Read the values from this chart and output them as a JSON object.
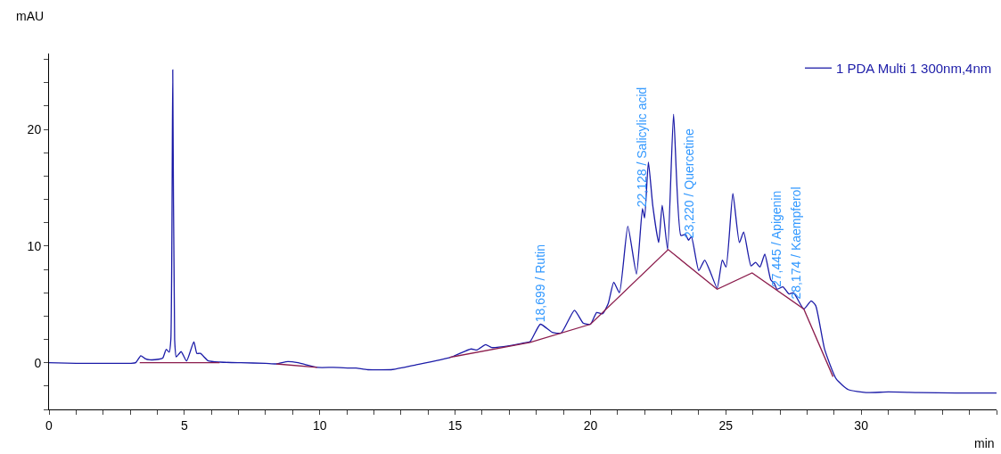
{
  "chart_data": {
    "type": "line",
    "xlabel": "min",
    "ylabel": "mAU",
    "xlim": [
      0,
      35
    ],
    "ylim": [
      -4,
      26.5
    ],
    "xticks": [
      0,
      {
        "value": 1,
        "label": null
      },
      {
        "value": 2,
        "label": null
      },
      {
        "value": 3,
        "label": null
      },
      {
        "value": 4,
        "label": null
      },
      5,
      {
        "value": 6,
        "label": null
      },
      {
        "value": 7,
        "label": null
      },
      {
        "value": 8,
        "label": null
      },
      {
        "value": 9,
        "label": null
      },
      10,
      {
        "value": 11,
        "label": null
      },
      {
        "value": 12,
        "label": null
      },
      {
        "value": 13,
        "label": null
      },
      {
        "value": 14,
        "label": null
      },
      15,
      {
        "value": 16,
        "label": null
      },
      {
        "value": 17,
        "label": null
      },
      {
        "value": 18,
        "label": null
      },
      {
        "value": 19,
        "label": null
      },
      20,
      {
        "value": 21,
        "label": null
      },
      {
        "value": 22,
        "label": null
      },
      {
        "value": 23,
        "label": null
      },
      {
        "value": 24,
        "label": null
      },
      25,
      {
        "value": 26,
        "label": null
      },
      {
        "value": 27,
        "label": null
      },
      {
        "value": 28,
        "label": null
      },
      {
        "value": 29,
        "label": null
      },
      30,
      {
        "value": 31,
        "label": null
      },
      {
        "value": 32,
        "label": null
      },
      {
        "value": 33,
        "label": null
      },
      {
        "value": 34,
        "label": null
      },
      {
        "value": 35,
        "label": null
      }
    ],
    "yticks": [
      {
        "value": -4,
        "label": null
      },
      {
        "value": -2,
        "label": null
      },
      0,
      {
        "value": 2,
        "label": null
      },
      {
        "value": 4,
        "label": null
      },
      {
        "value": 6,
        "label": null
      },
      {
        "value": 8,
        "label": null
      },
      10,
      {
        "value": 12,
        "label": null
      },
      {
        "value": 14,
        "label": null
      },
      {
        "value": 16,
        "label": null
      },
      {
        "value": 18,
        "label": null
      },
      20,
      {
        "value": 22,
        "label": null
      },
      {
        "value": 24,
        "label": null
      },
      {
        "value": 26,
        "label": null
      }
    ],
    "legend": "top right",
    "marker": "none",
    "line_style": "solid",
    "series": [
      {
        "name": "1 PDA Multi 1 300nm,4nm",
        "color": "#1c1ca8",
        "x": [
          0,
          1,
          2,
          3,
          3.2,
          3.39,
          3.55,
          3.72,
          4.05,
          4.2,
          4.33,
          4.44,
          4.5,
          4.57,
          4.64,
          4.7,
          4.88,
          5.08,
          5.35,
          5.46,
          5.59,
          5.89,
          6.33,
          7.09,
          8.0,
          8.4,
          8.82,
          9.2,
          9.92,
          10.5,
          11.1,
          11.34,
          11.78,
          12.7,
          13.52,
          14.83,
          15.59,
          15.81,
          16.13,
          16.35,
          17.0,
          17.55,
          17.77,
          18.15,
          18.59,
          18.92,
          19.41,
          19.73,
          20.0,
          20.23,
          20.45,
          20.66,
          20.86,
          21.07,
          21.38,
          21.7,
          21.92,
          22.0,
          22.14,
          22.3,
          22.52,
          22.65,
          22.85,
          23.07,
          23.34,
          23.51,
          23.62,
          23.73,
          24.0,
          24.22,
          24.44,
          24.68,
          24.87,
          25.01,
          25.26,
          25.5,
          25.66,
          25.93,
          26.1,
          26.26,
          26.44,
          26.66,
          26.79,
          26.89,
          27.11,
          27.33,
          27.5,
          27.88,
          28.15,
          28.32,
          28.65,
          29.08,
          29.52,
          30.18,
          31.0,
          32.13,
          33.5,
          35.0
        ],
        "values": [
          0,
          -0.05,
          -0.05,
          -0.05,
          0.0,
          0.6,
          0.35,
          0.25,
          0.3,
          0.4,
          1.15,
          0.9,
          2.0,
          25.1,
          2.0,
          0.5,
          0.95,
          0.15,
          1.8,
          0.8,
          0.8,
          0.15,
          0.05,
          0,
          -0.05,
          -0.1,
          0.1,
          0,
          -0.4,
          -0.4,
          -0.45,
          -0.46,
          -0.6,
          -0.58,
          -0.2,
          0.46,
          1.18,
          1.1,
          1.55,
          1.3,
          1.45,
          1.7,
          1.8,
          3.3,
          2.6,
          2.55,
          4.5,
          3.4,
          3.3,
          4.3,
          4.2,
          5.1,
          6.9,
          6.0,
          11.7,
          7.6,
          13.2,
          12.4,
          17.2,
          13.5,
          10.3,
          13.5,
          9.7,
          21.3,
          10.9,
          11.0,
          10.5,
          10.8,
          7.9,
          8.8,
          7.7,
          6.4,
          8.8,
          8.2,
          14.5,
          10.3,
          11.2,
          8.3,
          8.6,
          8.2,
          9.3,
          7.1,
          6.8,
          6.3,
          6.5,
          5.9,
          6.0,
          4.6,
          5.3,
          4.9,
          1.15,
          -1.4,
          -2.3,
          -2.56,
          -2.5,
          -2.56,
          -2.6,
          -2.6
        ]
      },
      {
        "color": "#8b1c4c",
        "x": [
          3.35,
          6.3,
          null,
          8.4,
          9.9,
          null,
          14.8,
          17.77,
          20.0,
          22.87,
          24.68,
          25.97,
          27.88,
          28.96
        ],
        "values": [
          0,
          0,
          null,
          -0.1,
          -0.4,
          null,
          0.46,
          1.75,
          3.3,
          9.7,
          6.3,
          7.7,
          4.6,
          -1.2
        ]
      }
    ],
    "annotations": [
      {
        "text": "18,699 / Rutin",
        "x": 18.15,
        "y": 3.3
      },
      {
        "text": "22,128 / Salicylic acid",
        "x": 21.92,
        "y": 13.2
      },
      {
        "text": "23,220 / Quercetine",
        "x": 23.62,
        "y": 10.5
      },
      {
        "text": "27,445 / Apigenin",
        "x": 26.89,
        "y": 6.3
      },
      {
        "text": "28,174 / Kaempferol",
        "x": 27.6,
        "y": 5.3
      }
    ]
  }
}
